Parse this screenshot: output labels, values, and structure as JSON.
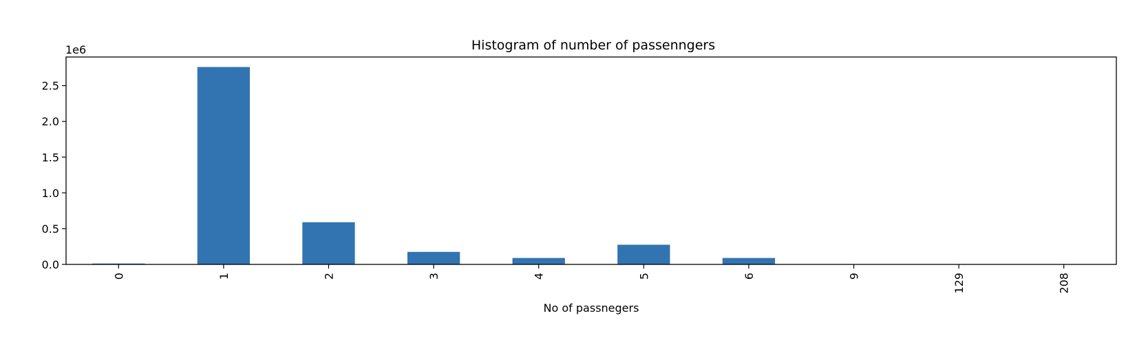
{
  "chart_data": {
    "type": "bar",
    "title": "Histogram of number of passenngers",
    "xlabel": "No of passnegers",
    "ylabel": "",
    "categories": [
      "0",
      "1",
      "2",
      "3",
      "4",
      "5",
      "6",
      "9",
      "129",
      "208"
    ],
    "values": [
      12000,
      2760000,
      590000,
      175000,
      90000,
      275000,
      90000,
      10,
      1,
      1
    ],
    "ylim": [
      0,
      2900000
    ],
    "y_offset_label": "1e6",
    "y_ticks": [
      0,
      500000,
      1000000,
      1500000,
      2000000,
      2500000
    ],
    "y_tick_labels": [
      "0.0",
      "0.5",
      "1.0",
      "1.5",
      "2.0",
      "2.5"
    ],
    "x_tick_rotation": "vertical",
    "grid": false,
    "legend": "none",
    "bar_color": "#3274b1"
  }
}
